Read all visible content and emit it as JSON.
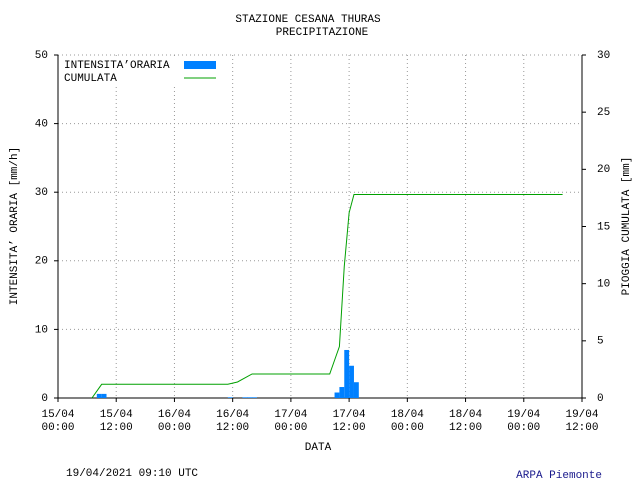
{
  "chart_data": {
    "type": "bar",
    "title": "STAZIONE CESANA THURAS",
    "subtitle": "PRECIPITAZIONE",
    "xlabel": "DATA",
    "ylabel": "INTENSITA’ ORARIA [mm/h]",
    "y2label": "PIOGGIA CUMULATA [mm]",
    "footer_left": "19/04/2021 09:10 UTC",
    "footer_right": "ARPA Piemonte",
    "xlim": [
      0,
      108
    ],
    "xticks": [
      {
        "value": 0,
        "label": [
          "15/04",
          "00:00"
        ]
      },
      {
        "value": 12,
        "label": [
          "15/04",
          "12:00"
        ]
      },
      {
        "value": 24,
        "label": [
          "16/04",
          "00:00"
        ]
      },
      {
        "value": 36,
        "label": [
          "16/04",
          "12:00"
        ]
      },
      {
        "value": 48,
        "label": [
          "17/04",
          "00:00"
        ]
      },
      {
        "value": 60,
        "label": [
          "17/04",
          "12:00"
        ]
      },
      {
        "value": 72,
        "label": [
          "18/04",
          "00:00"
        ]
      },
      {
        "value": 84,
        "label": [
          "18/04",
          "12:00"
        ]
      },
      {
        "value": 96,
        "label": [
          "19/04",
          "00:00"
        ]
      },
      {
        "value": 108,
        "label": [
          "19/04",
          "12:00"
        ]
      }
    ],
    "ylim": [
      0,
      50
    ],
    "yticks": [
      0,
      10,
      20,
      30,
      40,
      50
    ],
    "y2lim": [
      0,
      30
    ],
    "y2ticks": [
      0,
      5,
      10,
      15,
      20,
      25,
      30
    ],
    "grid": true,
    "legend": "upper-left",
    "series": [
      {
        "name": "INTENSITA’ORARIA",
        "type": "bar",
        "color": "#0080ff",
        "x": [
          8,
          9,
          35,
          38,
          39,
          40,
          57,
          58,
          59,
          60,
          61
        ],
        "values": [
          0.6,
          0.6,
          0.1,
          0.1,
          0.1,
          0.1,
          0.8,
          1.6,
          7.0,
          4.7,
          2.3
        ]
      },
      {
        "name": "CUMULATA",
        "type": "line",
        "axis": "y2",
        "color": "#00a000",
        "x": [
          7,
          9,
          35,
          37,
          40,
          56,
          57,
          58,
          59,
          60,
          61,
          104
        ],
        "values": [
          0,
          1.2,
          1.2,
          1.4,
          2.1,
          2.1,
          3.3,
          4.5,
          11.5,
          16.2,
          17.8,
          17.8
        ]
      }
    ]
  }
}
